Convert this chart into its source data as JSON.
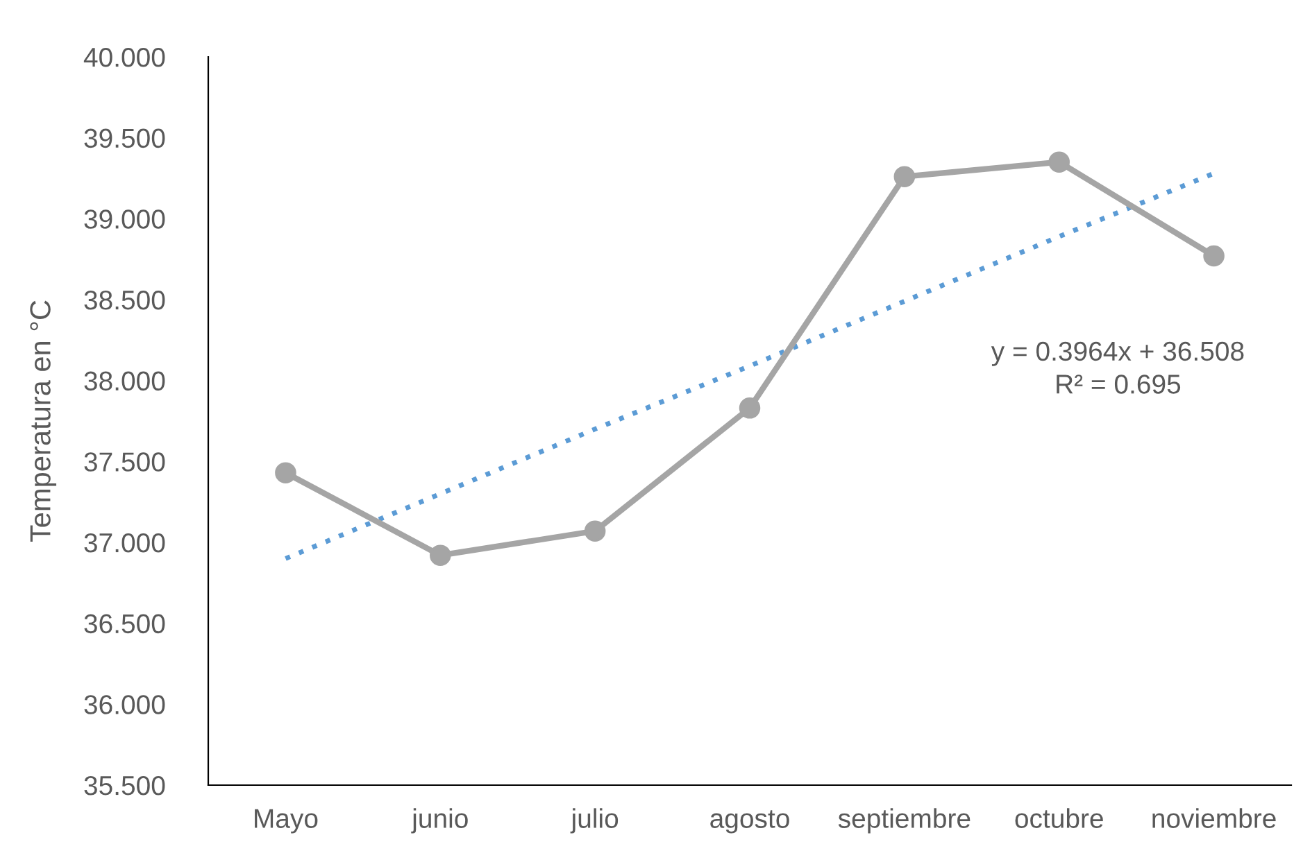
{
  "chart_data": {
    "type": "line",
    "ylabel": "Temperatura en °C",
    "categories": [
      "Mayo",
      "junio",
      "julio",
      "agosto",
      "septiembre",
      "octubre",
      "noviembre"
    ],
    "series": [
      {
        "color": "#a5a5a5",
        "marker": "circle",
        "line_style": "solid",
        "values": [
          37.43,
          36.92,
          37.07,
          37.83,
          39.26,
          39.35,
          38.77
        ]
      },
      {
        "type": "line",
        "color": "#5b9bd5",
        "marker": "none",
        "line_style": "dotted",
        "values": [
          36.9,
          37.3,
          37.7,
          38.09,
          38.49,
          38.89,
          39.28
        ]
      }
    ],
    "ylim": [
      35.5,
      40
    ],
    "yticks": [
      {
        "value": 35.5,
        "label": "35.500"
      },
      {
        "value": 36,
        "label": "36.000"
      },
      {
        "value": 36.5,
        "label": "36.500"
      },
      {
        "value": 37,
        "label": "37.000"
      },
      {
        "value": 37.5,
        "label": "37.500"
      },
      {
        "value": 38,
        "label": "38.000"
      },
      {
        "value": 38.5,
        "label": "38.500"
      },
      {
        "value": 39,
        "label": "39.000"
      },
      {
        "value": 39.5,
        "label": "39.500"
      },
      {
        "value": 40,
        "label": "40.000"
      }
    ],
    "grid": false,
    "legend": false,
    "annotations": [
      "y = 0.3964x + 36.508\nR² = 0.695"
    ]
  }
}
